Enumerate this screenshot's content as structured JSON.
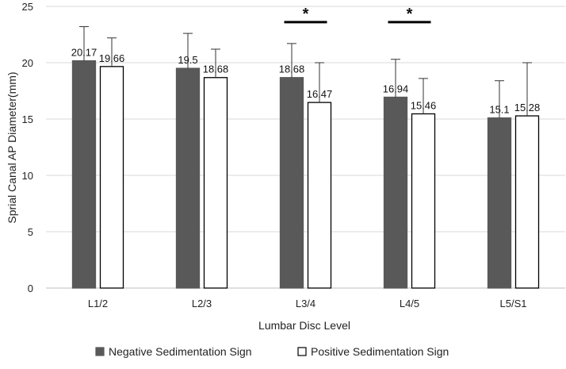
{
  "chart_data": {
    "type": "bar",
    "title": "",
    "xlabel": "Lumbar Disc Level",
    "ylabel": "Sprial Canal AP Diameter(mm)",
    "ylim": [
      0,
      25
    ],
    "yticks": [
      0,
      5,
      10,
      15,
      20,
      25
    ],
    "grid": true,
    "legend_position": "bottom",
    "categories": [
      "L1/2",
      "L2/3",
      "L3/4",
      "L4/5",
      "L5/S1"
    ],
    "series": [
      {
        "name": "Negative Sedimentation Sign",
        "color": "#595959",
        "fill": "#595959",
        "values": [
          20.17,
          19.5,
          18.68,
          16.94,
          15.1
        ],
        "value_labels": [
          "20.17",
          "19.5",
          "18.68",
          "16.94",
          "15.1"
        ],
        "error_upper": [
          23.2,
          22.6,
          21.7,
          20.3,
          18.4
        ]
      },
      {
        "name": "Positive Sedimentation Sign",
        "color": "#000000",
        "fill": "#ffffff",
        "values": [
          19.66,
          18.68,
          16.47,
          15.46,
          15.28
        ],
        "value_labels": [
          "19.66",
          "18.68",
          "16.47",
          "15.46",
          "15.28"
        ],
        "error_upper": [
          22.2,
          21.2,
          20.0,
          18.6,
          20.0
        ]
      }
    ],
    "significance": [
      {
        "category": "L3/4",
        "symbol": "*"
      },
      {
        "category": "L4/5",
        "symbol": "*"
      }
    ]
  }
}
